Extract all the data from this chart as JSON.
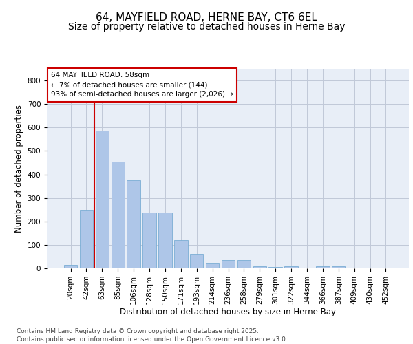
{
  "title_line1": "64, MAYFIELD ROAD, HERNE BAY, CT6 6EL",
  "title_line2": "Size of property relative to detached houses in Herne Bay",
  "xlabel": "Distribution of detached houses by size in Herne Bay",
  "ylabel": "Number of detached properties",
  "categories": [
    "20sqm",
    "42sqm",
    "63sqm",
    "85sqm",
    "106sqm",
    "128sqm",
    "150sqm",
    "171sqm",
    "193sqm",
    "214sqm",
    "236sqm",
    "258sqm",
    "279sqm",
    "301sqm",
    "322sqm",
    "344sqm",
    "366sqm",
    "387sqm",
    "409sqm",
    "430sqm",
    "452sqm"
  ],
  "values": [
    15,
    248,
    585,
    455,
    375,
    238,
    238,
    120,
    62,
    24,
    34,
    35,
    10,
    5,
    10,
    0,
    9,
    10,
    0,
    0,
    2
  ],
  "bar_color": "#aec6e8",
  "bar_edge_color": "#7aadd4",
  "bg_color": "#e8eef7",
  "marker_label_line1": "64 MAYFIELD ROAD: 58sqm",
  "marker_label_line2": "← 7% of detached houses are smaller (144)",
  "marker_label_line3": "93% of semi-detached houses are larger (2,026) →",
  "vline_color": "#cc0000",
  "box_edge_color": "#cc0000",
  "footnote_line1": "Contains HM Land Registry data © Crown copyright and database right 2025.",
  "footnote_line2": "Contains public sector information licensed under the Open Government Licence v3.0.",
  "ylim": [
    0,
    850
  ],
  "yticks": [
    0,
    100,
    200,
    300,
    400,
    500,
    600,
    700,
    800
  ],
  "grid_color": "#c0c8d8",
  "title_fontsize": 11,
  "subtitle_fontsize": 10,
  "axis_label_fontsize": 8.5,
  "tick_fontsize": 7.5,
  "annotation_fontsize": 7.5,
  "footnote_fontsize": 6.5
}
